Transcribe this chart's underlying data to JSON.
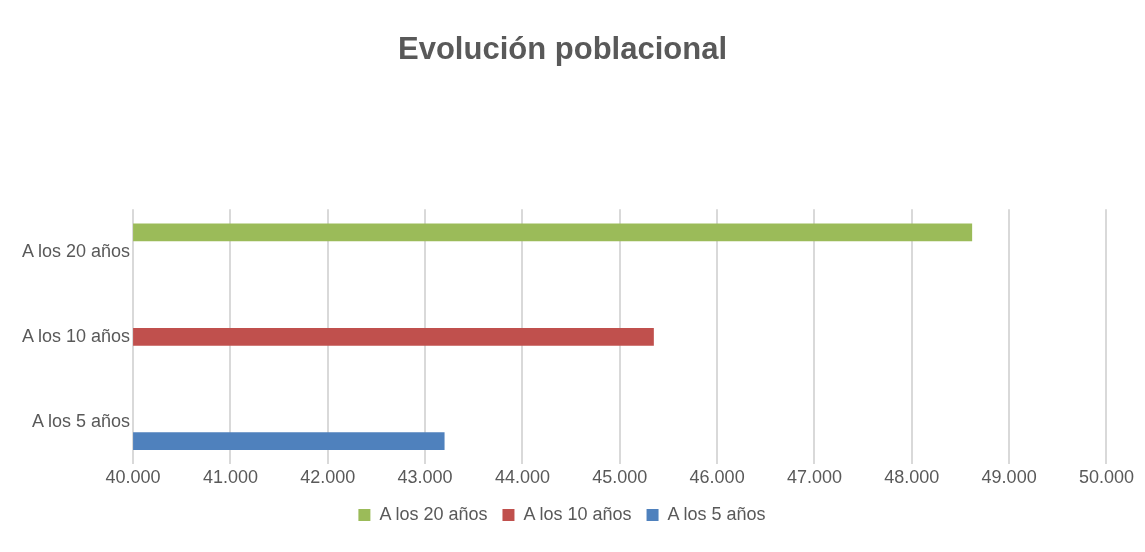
{
  "chart_data": {
    "type": "bar",
    "orientation": "horizontal",
    "title": "Evolución poblacional",
    "categories": [
      "A los 20 años",
      "A los 10 años",
      "A los 5 años"
    ],
    "series": [
      {
        "name": "A los 20 años",
        "color": "#9bbb59",
        "values": [
          48620,
          null,
          null
        ]
      },
      {
        "name": "A los 10 años",
        "color": "#c0504d",
        "values": [
          null,
          45350,
          null
        ]
      },
      {
        "name": "A los 5 años",
        "color": "#4f81bd",
        "values": [
          null,
          null,
          43200
        ]
      }
    ],
    "xlim": [
      40000,
      50000
    ],
    "xticks": [
      {
        "value": 40000,
        "label": "40.000"
      },
      {
        "value": 41000,
        "label": "41.000"
      },
      {
        "value": 42000,
        "label": "42.000"
      },
      {
        "value": 43000,
        "label": "43.000"
      },
      {
        "value": 44000,
        "label": "44.000"
      },
      {
        "value": 45000,
        "label": "45.000"
      },
      {
        "value": 46000,
        "label": "46.000"
      },
      {
        "value": 47000,
        "label": "47.000"
      },
      {
        "value": 48000,
        "label": "48.000"
      },
      {
        "value": 49000,
        "label": "49.000"
      },
      {
        "value": 50000,
        "label": "50.000"
      }
    ],
    "grid": "x",
    "legend": "bottom"
  }
}
